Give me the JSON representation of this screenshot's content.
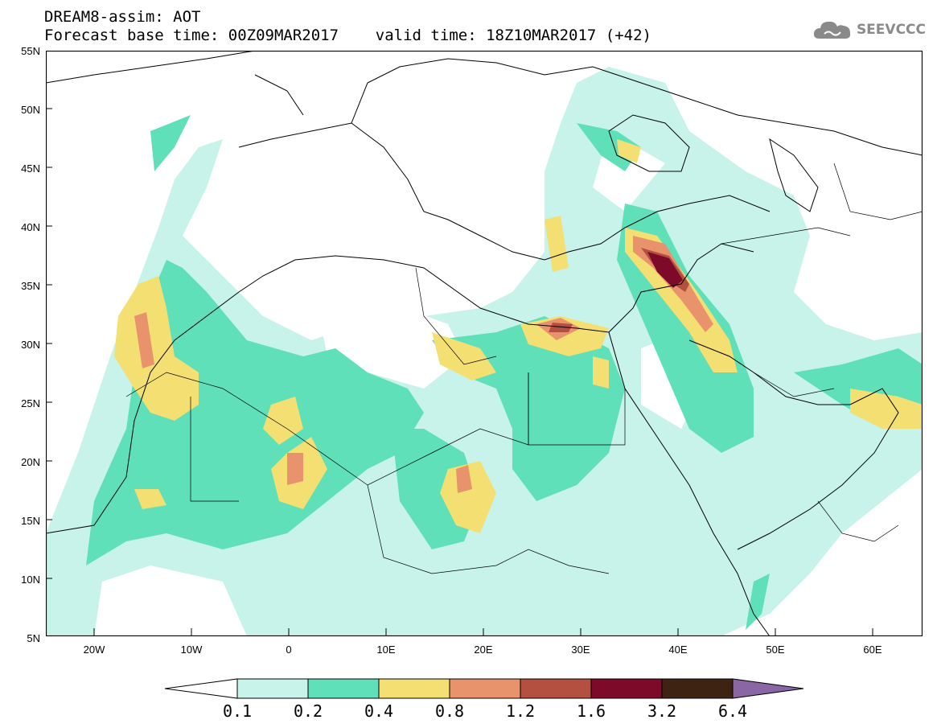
{
  "header": {
    "line1": "DREAM8-assim: AOT",
    "line2": "Forecast base time: 00Z09MAR2017    valid time: 18Z10MAR2017 (+42)"
  },
  "logo": {
    "icon": "cloud-icon",
    "text": "SEEVCCC",
    "color": "#8a8a8a"
  },
  "map": {
    "lon_range": [
      -25,
      65
    ],
    "lat_range": [
      5,
      55
    ],
    "lat_labels": [
      "55N",
      "50N",
      "45N",
      "40N",
      "35N",
      "30N",
      "25N",
      "20N",
      "15N",
      "10N",
      "5N"
    ],
    "lon_labels": [
      "20W",
      "10W",
      "0",
      "10E",
      "20E",
      "30E",
      "40E",
      "50E",
      "60E"
    ]
  },
  "colorbar": {
    "levels": [
      "0.1",
      "0.2",
      "0.4",
      "0.8",
      "1.2",
      "1.6",
      "3.2",
      "6.4"
    ],
    "colors": [
      "#ffffff",
      "#c8f3ea",
      "#5fe0b9",
      "#f4df72",
      "#e8936b",
      "#b4503f",
      "#7d0a28",
      "#3f2312",
      "#8a66a4"
    ]
  }
}
